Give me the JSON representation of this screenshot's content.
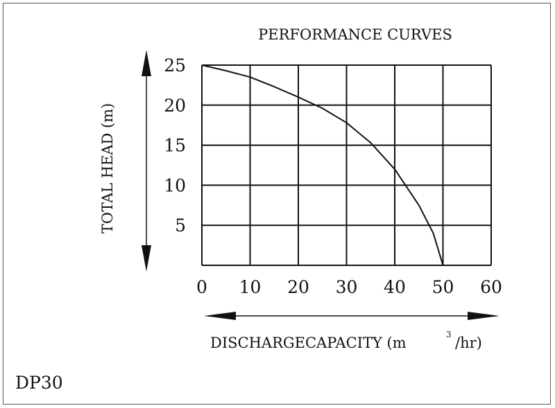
{
  "chart_data": {
    "type": "line",
    "title": "PERFORMANCE CURVES",
    "xlabel": "DISCHARGECAPACITY (m",
    "xlabel_sup": "3",
    "xlabel_tail": "/hr)",
    "ylabel": "TOTAL HEAD (m)",
    "x_ticks": [
      "0",
      "10",
      "20",
      "30",
      "40",
      "50",
      "60"
    ],
    "y_ticks": [
      "5",
      "10",
      "15",
      "20",
      "25"
    ],
    "xlim": [
      0,
      60
    ],
    "ylim": [
      0,
      25
    ],
    "grid": true,
    "series": [
      {
        "x": [
          0,
          5,
          10,
          15,
          20,
          25,
          30,
          35,
          40,
          45,
          48,
          50
        ],
        "y": [
          25,
          24.3,
          23.5,
          22.3,
          21.0,
          19.6,
          17.8,
          15.3,
          12.0,
          7.5,
          4.0,
          0
        ]
      }
    ]
  },
  "model": "DP30",
  "colors": {
    "line": "#111111",
    "grid": "#111111"
  }
}
